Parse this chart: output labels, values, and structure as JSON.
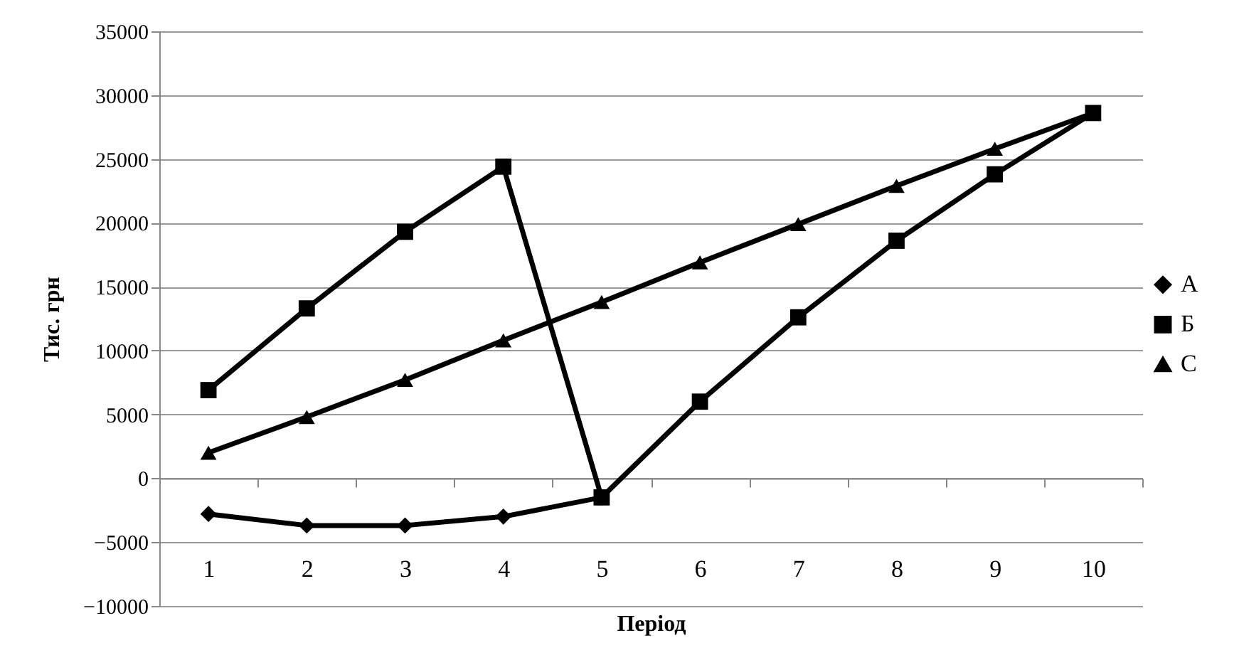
{
  "chart_data": {
    "type": "line",
    "xlabel": "Період",
    "ylabel": "Тис. грн",
    "categories": [
      "1",
      "2",
      "3",
      "4",
      "5",
      "6",
      "7",
      "8",
      "9",
      "10"
    ],
    "series": [
      {
        "name": "А",
        "color": "#000000",
        "marker": "diamond",
        "values": [
          -2800,
          -3700,
          -3700,
          -3000,
          -1500,
          null,
          null,
          null,
          null,
          null
        ]
      },
      {
        "name": "Б",
        "color": "#000000",
        "marker": "square",
        "values": [
          6900,
          13300,
          19300,
          24400,
          -1500,
          6000,
          12600,
          18600,
          23800,
          28600
        ]
      },
      {
        "name": "С",
        "color": "#000000",
        "marker": "triangle",
        "values": [
          2000,
          4800,
          7700,
          10800,
          13800,
          16900,
          19900,
          22900,
          25800,
          28600
        ]
      }
    ],
    "ylim": [
      -10000,
      35000
    ],
    "yticks": [
      -10000,
      -5000,
      0,
      5000,
      10000,
      15000,
      20000,
      25000,
      30000,
      35000
    ],
    "grid": "y",
    "legend": "right",
    "line_style": "solid"
  }
}
